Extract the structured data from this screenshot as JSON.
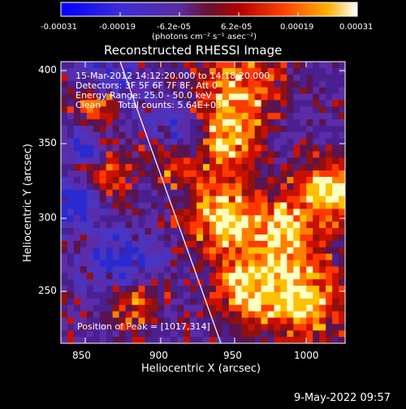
{
  "colorbar": {
    "tick_labels": [
      "-0.00031",
      "-0.00019",
      "-6.2e-05",
      "6.2e-05",
      "0.00019",
      "0.00031"
    ],
    "unit_label": "(photons cm⁻² s⁻¹ asec⁻²)",
    "min": -0.00031,
    "max": 0.00031
  },
  "plot": {
    "title": "Reconstructed RHESSI Image",
    "xlabel": "Heliocentric X (arcsec)",
    "ylabel": "Heliocentric Y (arcsec)",
    "x_ticks": [
      "850",
      "900",
      "950",
      "1000"
    ],
    "y_ticks": [
      "400",
      "350",
      "300",
      "250"
    ],
    "info_lines": [
      "15-Mar-2012 14:12:20.000 to 14:18:20.000",
      "Detectors: 3F 5F 6F 7F 8F, Att 0",
      "Energy Range: 25.0 - 50.0 keV",
      "Clean      Total counts: 5.64E+03"
    ],
    "peak_label": "Position of Peak = [1017,314]"
  },
  "footer": {
    "timestamp": "9-May-2022 09:57"
  }
}
